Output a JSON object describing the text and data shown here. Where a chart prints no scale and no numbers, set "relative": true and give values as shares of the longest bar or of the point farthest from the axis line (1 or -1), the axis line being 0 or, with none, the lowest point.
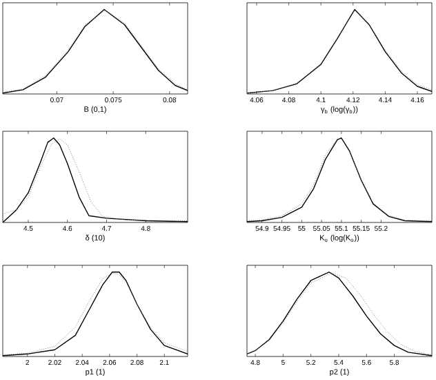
{
  "chart_data": [
    {
      "type": "line",
      "xlabel": "B (0,1)",
      "relative": true,
      "tick_labels": "x",
      "xlim": [
        0.0652,
        0.0816
      ],
      "xticks": [
        0.07,
        0.075,
        0.08
      ],
      "series": [
        {
          "color": "#000000",
          "line_style": "solid",
          "x": [
            0.0652,
            0.067,
            0.069,
            0.071,
            0.0725,
            0.0742,
            0.076,
            0.0775,
            0.079,
            0.0805,
            0.0816
          ],
          "values": [
            0.01,
            0.05,
            0.2,
            0.5,
            0.8,
            1,
            0.82,
            0.55,
            0.28,
            0.1,
            0.04
          ]
        },
        {
          "color": "#808080",
          "line_style": "dotted",
          "x": [
            0.0652,
            0.067,
            0.069,
            0.071,
            0.0725,
            0.0743,
            0.076,
            0.0775,
            0.079,
            0.0805,
            0.0816
          ],
          "values": [
            0.02,
            0.06,
            0.22,
            0.52,
            0.82,
            0.99,
            0.84,
            0.57,
            0.3,
            0.12,
            0.05
          ]
        }
      ]
    },
    {
      "type": "line",
      "xlabel": "γ$_{b}$ (log(γ$_{b}$))",
      "relative": true,
      "tick_labels": "x",
      "xlim": [
        4.054,
        4.169
      ],
      "xticks": [
        4.06,
        4.08,
        4.1,
        4.12,
        4.14,
        4.16
      ],
      "series": [
        {
          "color": "#000000",
          "line_style": "solid",
          "x": [
            4.054,
            4.07,
            4.085,
            4.1,
            4.11,
            4.121,
            4.13,
            4.14,
            4.15,
            4.16,
            4.169
          ],
          "values": [
            0.01,
            0.04,
            0.12,
            0.35,
            0.65,
            1,
            0.82,
            0.5,
            0.25,
            0.09,
            0.03
          ]
        },
        {
          "color": "#808080",
          "line_style": "dotted",
          "x": [
            4.054,
            4.07,
            4.085,
            4.1,
            4.11,
            4.121,
            4.13,
            4.14,
            4.15,
            4.16,
            4.169
          ],
          "values": [
            0.01,
            0.04,
            0.13,
            0.36,
            0.66,
            0.99,
            0.83,
            0.52,
            0.27,
            0.11,
            0.05
          ]
        }
      ]
    },
    {
      "type": "line",
      "xlabel": "δ (10)",
      "relative": true,
      "tick_labels": "x",
      "xlim": [
        4.435,
        4.907
      ],
      "xticks": [
        4.5,
        4.6,
        4.7,
        4.8
      ],
      "series": [
        {
          "color": "#000000",
          "line_style": "solid",
          "x": [
            4.435,
            4.47,
            4.5,
            4.53,
            4.55,
            4.565,
            4.58,
            4.6,
            4.63,
            4.655,
            4.7,
            4.8,
            4.907
          ],
          "values": [
            0,
            0.15,
            0.35,
            0.7,
            0.95,
            1,
            0.92,
            0.7,
            0.3,
            0.08,
            0.05,
            0.02,
            0.01
          ]
        },
        {
          "color": "#808080",
          "line_style": "dotted",
          "x": [
            4.435,
            4.47,
            4.5,
            4.53,
            4.56,
            4.58,
            4.6,
            4.63,
            4.66,
            4.69,
            4.75,
            4.907
          ],
          "values": [
            0.1,
            0.15,
            0.3,
            0.65,
            0.93,
            0.99,
            0.92,
            0.6,
            0.25,
            0.07,
            0.03,
            0.02
          ]
        }
      ]
    },
    {
      "type": "line",
      "xlabel": "K$_{o}$ (log(K$_{o}$))",
      "relative": true,
      "tick_labels": "x",
      "xlim": [
        54.862,
        55.328
      ],
      "xticks": [
        54.9,
        54.95,
        55,
        55.05,
        55.1,
        55.15,
        55.2
      ],
      "series": [
        {
          "color": "#000000",
          "line_style": "solid",
          "x": [
            54.862,
            54.9,
            54.95,
            55,
            55.03,
            55.06,
            55.09,
            55.1,
            55.12,
            55.15,
            55.18,
            55.22,
            55.26,
            55.328
          ],
          "values": [
            0.01,
            0.02,
            0.06,
            0.18,
            0.4,
            0.75,
            0.98,
            1,
            0.85,
            0.5,
            0.22,
            0.07,
            0.02,
            0.01
          ]
        },
        {
          "color": "#808080",
          "line_style": "dotted",
          "x": [
            54.862,
            54.9,
            54.95,
            55,
            55.03,
            55.06,
            55.09,
            55.1,
            55.12,
            55.15,
            55.18,
            55.22,
            55.26,
            55.328
          ],
          "values": [
            0.02,
            0.03,
            0.08,
            0.22,
            0.45,
            0.8,
            0.99,
            0.99,
            0.84,
            0.5,
            0.23,
            0.08,
            0.03,
            0.02
          ]
        }
      ]
    },
    {
      "type": "line",
      "xlabel": "p1 (1)",
      "relative": true,
      "tick_labels": "x",
      "xlim": [
        1.982,
        2.117
      ],
      "xticks": [
        2,
        2.02,
        2.04,
        2.06,
        2.08,
        2.1
      ],
      "series": [
        {
          "color": "#000000",
          "line_style": "solid",
          "x": [
            1.982,
            2,
            2.02,
            2.035,
            2.045,
            2.055,
            2.062,
            2.067,
            2.072,
            2.08,
            2.09,
            2.1,
            2.117
          ],
          "values": [
            0.01,
            0.03,
            0.08,
            0.25,
            0.55,
            0.85,
            1,
            1,
            0.9,
            0.62,
            0.32,
            0.13,
            0.03
          ]
        },
        {
          "color": "#808080",
          "line_style": "dotted",
          "x": [
            1.982,
            2,
            2.02,
            2.035,
            2.045,
            2.055,
            2.062,
            2.067,
            2.072,
            2.08,
            2.09,
            2.1,
            2.117
          ],
          "values": [
            0.02,
            0.04,
            0.12,
            0.35,
            0.65,
            0.92,
            0.99,
            0.97,
            0.88,
            0.62,
            0.34,
            0.16,
            0.06
          ]
        }
      ]
    },
    {
      "type": "line",
      "xlabel": "p2 (1)",
      "relative": true,
      "tick_labels": "x",
      "xlim": [
        4.74,
        6.07
      ],
      "xticks": [
        4.8,
        5,
        5.2,
        5.4,
        5.6,
        5.8
      ],
      "series": [
        {
          "color": "#000000",
          "line_style": "solid",
          "x": [
            4.74,
            4.8,
            4.9,
            5,
            5.1,
            5.2,
            5.33,
            5.4,
            5.5,
            5.6,
            5.7,
            5.8,
            5.9,
            6.07
          ],
          "values": [
            0.03,
            0.07,
            0.2,
            0.42,
            0.68,
            0.9,
            1,
            0.93,
            0.72,
            0.48,
            0.27,
            0.13,
            0.05,
            0.01
          ]
        },
        {
          "color": "#808080",
          "line_style": "dotted",
          "x": [
            4.74,
            4.8,
            4.9,
            5,
            5.1,
            5.2,
            5.35,
            5.45,
            5.55,
            5.65,
            5.75,
            5.85,
            5.95,
            6.07
          ],
          "values": [
            0.03,
            0.07,
            0.19,
            0.4,
            0.65,
            0.87,
            0.99,
            0.93,
            0.74,
            0.5,
            0.29,
            0.14,
            0.06,
            0.02
          ]
        }
      ]
    }
  ]
}
